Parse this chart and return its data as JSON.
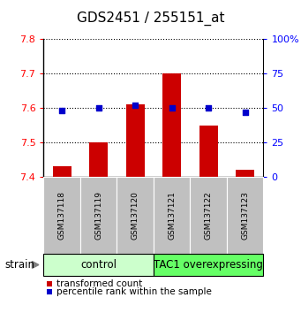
{
  "title": "GDS2451 / 255151_at",
  "samples": [
    "GSM137118",
    "GSM137119",
    "GSM137120",
    "GSM137121",
    "GSM137122",
    "GSM137123"
  ],
  "bar_values": [
    7.43,
    7.5,
    7.61,
    7.7,
    7.55,
    7.42
  ],
  "bar_base": 7.4,
  "percentile_values": [
    48,
    50,
    52,
    50,
    50,
    47
  ],
  "ylim_left": [
    7.4,
    7.8
  ],
  "ylim_right": [
    0,
    100
  ],
  "yticks_left": [
    7.4,
    7.5,
    7.6,
    7.7,
    7.8
  ],
  "ytick_labels_left": [
    "7.4",
    "7.5",
    "7.6",
    "7.7",
    "7.8"
  ],
  "yticks_right": [
    0,
    25,
    50,
    75,
    100
  ],
  "ytick_labels_right": [
    "0",
    "25",
    "50",
    "75",
    "100%"
  ],
  "bar_color": "#cc0000",
  "dot_color": "#0000cc",
  "groups": [
    {
      "label": "control",
      "indices": [
        0,
        1,
        2
      ],
      "color": "#ccffcc"
    },
    {
      "label": "TAC1 overexpressing",
      "indices": [
        3,
        4,
        5
      ],
      "color": "#66ff66"
    }
  ],
  "group_row_color": "#c0c0c0",
  "strain_label": "strain",
  "legend_bar_label": "transformed count",
  "legend_dot_label": "percentile rank within the sample",
  "title_fontsize": 11,
  "tick_fontsize": 8,
  "sample_fontsize": 6.5,
  "group_label_fontsize": 8.5,
  "legend_fontsize": 7.5
}
